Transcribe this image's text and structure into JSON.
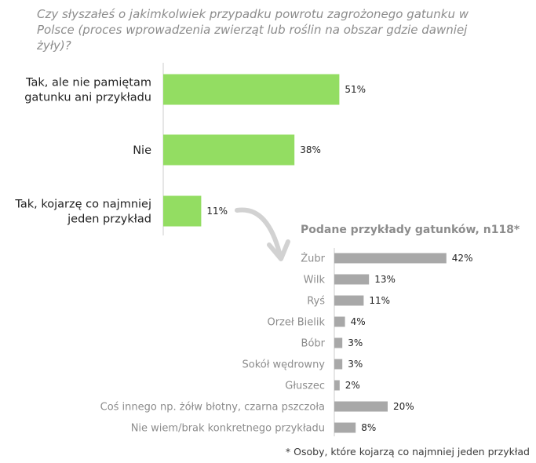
{
  "question": "Czy słyszałeś o jakimkolwiek przypadku powrotu zagrożonego gatunku w Polsce (proces wprowadzenia zwierząt lub roślin na obszar gdzie dawniej żyły)?",
  "footnote": "* Osoby, które kojarzą co najmniej jeden przykład",
  "colors": {
    "main_bar": "#93dd62",
    "sub_bar": "#a8a8a8",
    "axis": "#cccccc",
    "arrow": "#d2d2d2"
  },
  "chart_data": [
    {
      "type": "bar",
      "orientation": "horizontal",
      "title": "",
      "categories": [
        [
          "Tak, ale nie pamiętam",
          "gatunku ani przykładu"
        ],
        [
          "Nie"
        ],
        [
          "Tak, kojarzę co najmniej",
          "jeden przykład"
        ]
      ],
      "values": [
        51,
        38,
        11
      ],
      "value_labels": [
        "51%",
        "38%",
        "11%"
      ],
      "unit": "%"
    },
    {
      "type": "bar",
      "orientation": "horizontal",
      "title": "Podane przykłady gatunków, n118*",
      "categories": [
        "Żubr",
        "Wilk",
        "Ryś",
        "Orzeł Bielik",
        "Bóbr",
        "Sokół wędrowny",
        "Głuszec",
        "Coś innego np. żółw błotny, czarna pszczoła",
        "Nie wiem/brak konkretnego przykładu"
      ],
      "values": [
        42,
        13,
        11,
        4,
        3,
        3,
        2,
        20,
        8
      ],
      "value_labels": [
        "42%",
        "13%",
        "11%",
        "4%",
        "3%",
        "3%",
        "2%",
        "20%",
        "8%"
      ],
      "unit": "%"
    }
  ]
}
